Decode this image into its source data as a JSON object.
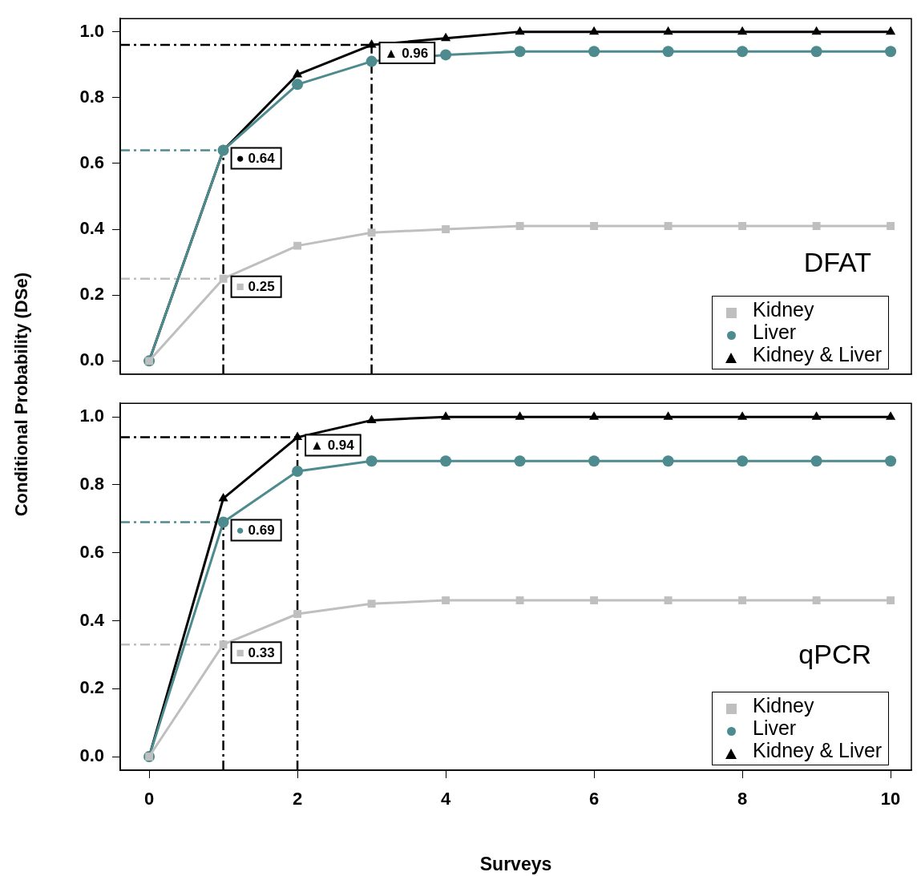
{
  "chart_data": [
    {
      "type": "line",
      "ylabel": "Conditional Probability (DSe)",
      "x": [
        0,
        1,
        2,
        3,
        4,
        5,
        6,
        7,
        8,
        9,
        10
      ],
      "xlim": [
        -0.39,
        10.28
      ],
      "xticks": [
        0,
        2,
        4,
        6,
        8,
        10
      ],
      "ylim": [
        -0.04,
        1.04
      ],
      "yticks": [
        {
          "value": 0,
          "label": "0.0"
        },
        {
          "value": 0.2,
          "label": "0.2"
        },
        {
          "value": 0.4,
          "label": "0.4"
        },
        {
          "value": 0.6,
          "label": "0.6"
        },
        {
          "value": 0.8,
          "label": "0.8"
        },
        {
          "value": 1,
          "label": "1.0"
        }
      ],
      "tick_labels": "y",
      "grid": false,
      "legend": "bottom right",
      "line_style": "solid",
      "series": [
        {
          "name": "Kidney",
          "color": "#bfbfbf",
          "marker": "square",
          "values": [
            0,
            0.25,
            0.35,
            0.39,
            0.4,
            0.41,
            0.41,
            0.41,
            0.41,
            0.41,
            0.41
          ]
        },
        {
          "name": "Liver",
          "color": "#4d8b8e",
          "marker": "circle",
          "values": [
            0,
            0.64,
            0.84,
            0.91,
            0.93,
            0.94,
            0.94,
            0.94,
            0.94,
            0.94,
            0.94
          ]
        },
        {
          "name": "Kidney & Liver",
          "color": "#000000",
          "marker": "triangle",
          "values": [
            0,
            0.64,
            0.87,
            0.96,
            0.98,
            1,
            1,
            1,
            1,
            1,
            1
          ]
        }
      ],
      "ref_lines": [
        {
          "axis": "y",
          "value": 0.96,
          "color": "#000000",
          "line_style": "dashed"
        },
        {
          "axis": "y",
          "value": 0.64,
          "color": "#4d8b8e",
          "line_style": "dashed"
        },
        {
          "axis": "y",
          "value": 0.25,
          "color": "#bfbfbf",
          "line_style": "dashed"
        },
        {
          "axis": "x",
          "value": 1,
          "color": "#000000",
          "line_style": "dashed"
        },
        {
          "axis": "x",
          "value": 3,
          "color": "#000000",
          "line_style": "dashed"
        }
      ],
      "annotations": [
        {
          "text": "▲ 0.96",
          "x": 3,
          "y": 0.96
        },
        {
          "text": "● 0.64",
          "x": 1,
          "y": 0.64
        },
        {
          "text": "■ 0.25",
          "x": 1,
          "y": 0.25
        },
        "DFAT"
      ]
    },
    {
      "type": "line",
      "xlabel": "Surveys",
      "x": [
        0,
        1,
        2,
        3,
        4,
        5,
        6,
        7,
        8,
        9,
        10
      ],
      "xlim": [
        -0.39,
        10.28
      ],
      "xticks": [
        0,
        2,
        4,
        6,
        8,
        10
      ],
      "ylim": [
        -0.04,
        1.04
      ],
      "yticks": [
        {
          "value": 0,
          "label": "0.0"
        },
        {
          "value": 0.2,
          "label": "0.2"
        },
        {
          "value": 0.4,
          "label": "0.4"
        },
        {
          "value": 0.6,
          "label": "0.6"
        },
        {
          "value": 0.8,
          "label": "0.8"
        },
        {
          "value": 1,
          "label": "1.0"
        }
      ],
      "grid": false,
      "legend": "bottom right",
      "line_style": "solid",
      "series": [
        {
          "name": "Kidney",
          "color": "#bfbfbf",
          "marker": "square",
          "values": [
            0,
            0.33,
            0.42,
            0.45,
            0.46,
            0.46,
            0.46,
            0.46,
            0.46,
            0.46,
            0.46
          ]
        },
        {
          "name": "Liver",
          "color": "#4d8b8e",
          "marker": "circle",
          "values": [
            0,
            0.69,
            0.84,
            0.87,
            0.87,
            0.87,
            0.87,
            0.87,
            0.87,
            0.87,
            0.87
          ]
        },
        {
          "name": "Kidney & Liver",
          "color": "#000000",
          "marker": "triangle",
          "values": [
            0,
            0.76,
            0.94,
            0.99,
            1,
            1,
            1,
            1,
            1,
            1,
            1
          ]
        }
      ],
      "ref_lines": [
        {
          "axis": "y",
          "value": 0.94,
          "color": "#000000",
          "line_style": "dashed"
        },
        {
          "axis": "y",
          "value": 0.69,
          "color": "#4d8b8e",
          "line_style": "dashed"
        },
        {
          "axis": "y",
          "value": 0.33,
          "color": "#bfbfbf",
          "line_style": "dashed"
        },
        {
          "axis": "x",
          "value": 1,
          "color": "#000000",
          "line_style": "dashed"
        },
        {
          "axis": "x",
          "value": 2,
          "color": "#000000",
          "line_style": "dashed"
        }
      ],
      "annotations": [
        {
          "text": "▲ 0.94",
          "x": 2,
          "y": 0.94
        },
        {
          "text": "● 0.69",
          "x": 1,
          "y": 0.69
        },
        {
          "text": "■ 0.33",
          "x": 1,
          "y": 0.33
        },
        "qPCR"
      ]
    }
  ]
}
